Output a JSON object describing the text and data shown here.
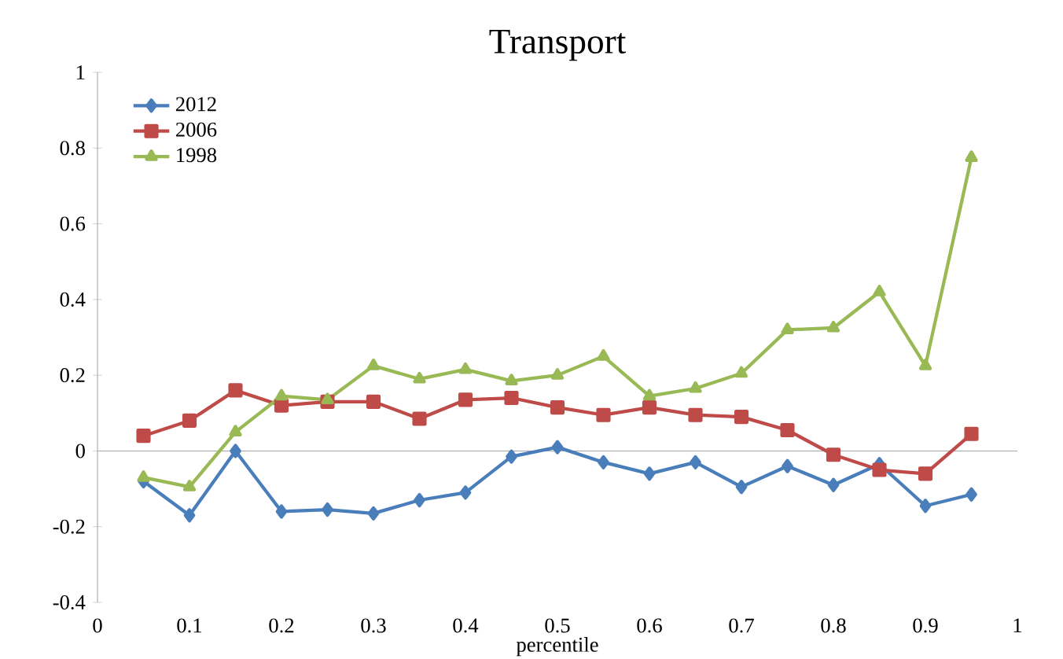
{
  "chart_data": {
    "type": "line",
    "title": "Transport",
    "xlabel": "percentile",
    "x": [
      0.05,
      0.1,
      0.15,
      0.2,
      0.25,
      0.3,
      0.35,
      0.4,
      0.45,
      0.5,
      0.55,
      0.6,
      0.65,
      0.7,
      0.75,
      0.8,
      0.85,
      0.9,
      0.95
    ],
    "series": [
      {
        "name": "2012",
        "color": "#4a7ebb",
        "marker": "diamond",
        "values": [
          -0.08,
          -0.17,
          0,
          -0.16,
          -0.155,
          -0.165,
          -0.13,
          -0.11,
          -0.015,
          0.01,
          -0.03,
          -0.06,
          -0.03,
          -0.095,
          -0.04,
          -0.09,
          -0.035,
          -0.145,
          -0.115
        ]
      },
      {
        "name": "2006",
        "color": "#be4b48",
        "marker": "square",
        "values": [
          0.04,
          0.08,
          0.16,
          0.12,
          0.13,
          0.13,
          0.085,
          0.135,
          0.14,
          0.115,
          0.095,
          0.115,
          0.095,
          0.09,
          0.055,
          -0.01,
          -0.05,
          -0.06,
          0.045
        ]
      },
      {
        "name": "1998",
        "color": "#98b954",
        "marker": "triangle",
        "values": [
          -0.07,
          -0.095,
          0.05,
          0.145,
          0.135,
          0.225,
          0.19,
          0.215,
          0.185,
          0.2,
          0.25,
          0.145,
          0.165,
          0.205,
          0.32,
          0.325,
          0.42,
          0.225,
          0.775
        ]
      }
    ],
    "xlim": [
      0,
      1
    ],
    "ylim": [
      -0.4,
      1
    ],
    "xticks": [
      0,
      0.1,
      0.2,
      0.3,
      0.4,
      0.5,
      0.6,
      0.7,
      0.8,
      0.9,
      1
    ],
    "yticks": [
      -0.4,
      -0.2,
      0,
      0.2,
      0.4,
      0.6,
      0.8,
      1
    ],
    "ref_lines": [
      {
        "axis": "y",
        "value": 0,
        "color": "#a6a6a6"
      }
    ],
    "grid": false,
    "legend": "top left",
    "line_style": "solid"
  }
}
